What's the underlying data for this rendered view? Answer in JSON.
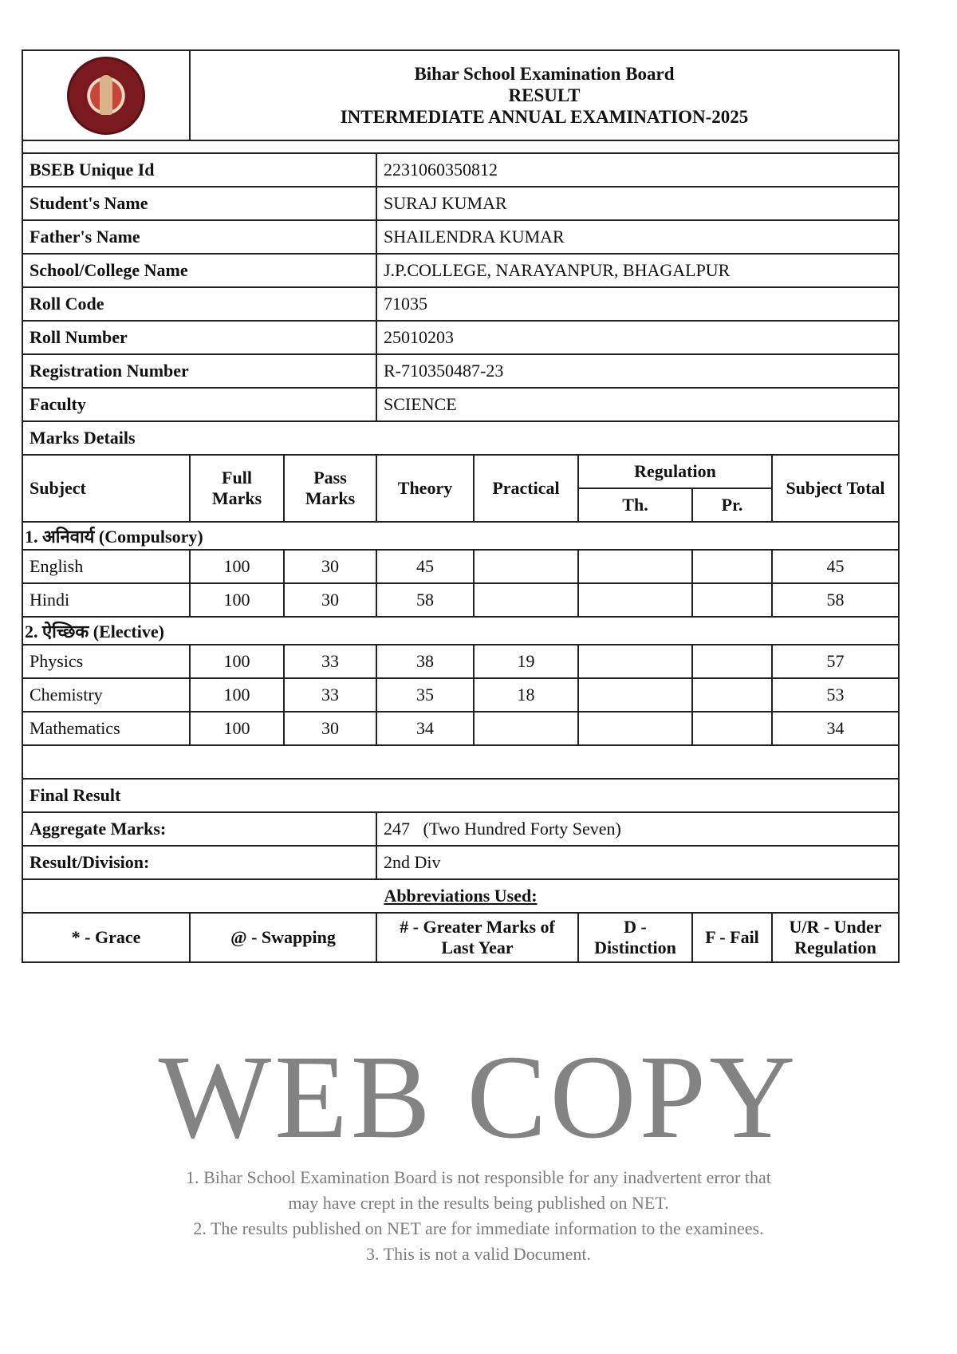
{
  "header": {
    "board": "Bihar School Examination Board",
    "result": "RESULT",
    "exam": "INTERMEDIATE ANNUAL EXAMINATION-2025",
    "logo": "bseb-seal"
  },
  "student": [
    {
      "label": "BSEB Unique Id",
      "value": "2231060350812"
    },
    {
      "label": "Student's Name",
      "value": "SURAJ KUMAR"
    },
    {
      "label": "Father's Name",
      "value": "SHAILENDRA KUMAR"
    },
    {
      "label": "School/College Name",
      "value": "J.P.COLLEGE, NARAYANPUR, BHAGALPUR"
    },
    {
      "label": "Roll Code",
      "value": "71035"
    },
    {
      "label": "Roll Number",
      "value": "25010203"
    },
    {
      "label": "Registration Number",
      "value": "R-710350487-23"
    },
    {
      "label": "Faculty",
      "value": "SCIENCE"
    }
  ],
  "marks": {
    "title": "Marks Details",
    "headers": {
      "subject": "Subject",
      "full": "Full Marks",
      "pass": "Pass Marks",
      "theory": "Theory",
      "practical": "Practical",
      "regulation": "Regulation",
      "th": "Th.",
      "pr": "Pr.",
      "total": "Subject Total"
    },
    "compulsory": {
      "label": "1. अनिवार्य (Compulsory)",
      "rows": [
        {
          "subject": "English",
          "full": "100",
          "pass": "30",
          "theory": "45",
          "practical": "",
          "th": "",
          "pr": "",
          "total": "45"
        },
        {
          "subject": "Hindi",
          "full": "100",
          "pass": "30",
          "theory": "58",
          "practical": "",
          "th": "",
          "pr": "",
          "total": "58"
        }
      ]
    },
    "elective": {
      "label": "2. ऐच्छिक (Elective)",
      "rows": [
        {
          "subject": "Physics",
          "full": "100",
          "pass": "33",
          "theory": "38",
          "practical": "19",
          "th": "",
          "pr": "",
          "total": "57"
        },
        {
          "subject": "Chemistry",
          "full": "100",
          "pass": "33",
          "theory": "35",
          "practical": "18",
          "th": "",
          "pr": "",
          "total": "53"
        },
        {
          "subject": "Mathematics",
          "full": "100",
          "pass": "30",
          "theory": "34",
          "practical": "",
          "th": "",
          "pr": "",
          "total": "34"
        }
      ]
    }
  },
  "final": {
    "title": "Final Result",
    "aggregate_label": "Aggregate Marks:",
    "aggregate_value": "247",
    "aggregate_words": "(Two Hundred Forty Seven)",
    "division_label": "Result/Division:",
    "division_value": "2nd Div"
  },
  "abbreviations": {
    "title": "Abbreviations Used:",
    "items": [
      "* - Grace",
      "@ - Swapping",
      "# - Greater Marks of Last Year",
      "D - Distinction",
      "F - Fail",
      "U/R - Under Regulation"
    ]
  },
  "watermark": {
    "main": "WEB COPY",
    "lines": [
      "1. Bihar School Examination Board is not responsible for any inadvertent error that",
      "may have crept in the results being published on NET.",
      "2. The results published on NET are for immediate information to the examinees.",
      "3. This is not a valid Document."
    ]
  }
}
